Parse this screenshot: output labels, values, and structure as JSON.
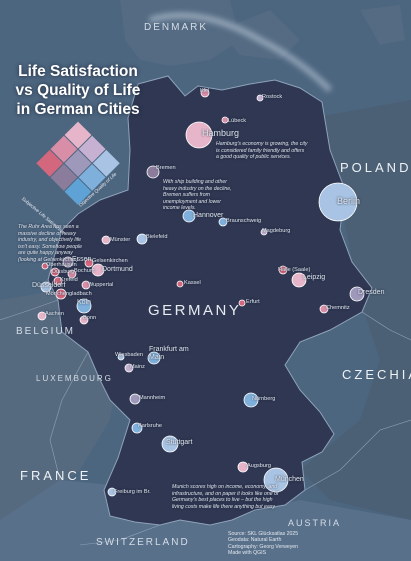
{
  "title": [
    "Life Satisfaction",
    "vs Quality of Life",
    "in German Cities"
  ],
  "legend": {
    "x_axis": "Objective Quality of Life",
    "y_axis": "Subjective Life Satisfaction",
    "colors": [
      "#e6b5c9",
      "#c7b1d2",
      "#a8c3e3",
      "#d98ea8",
      "#9e98bb",
      "#7fb0dc",
      "#d2677e",
      "#8b7c9c",
      "#5fa3d6"
    ]
  },
  "countries": {
    "germany": "GERMANY",
    "poland": "POLAND",
    "czechia": "CZECHIA",
    "belgium": "BELGIUM",
    "luxembourg": "LUXEMBOURG",
    "france": "FRANCE",
    "switzerland": "SWITZERLAND",
    "austria": "AUSTRIA",
    "denmark": "DENMARK"
  },
  "cities": [
    {
      "name": "Hamburg",
      "color": "#e6b5c9"
    },
    {
      "name": "Berlin",
      "color": "#a8c3e3"
    },
    {
      "name": "Bremen",
      "color": "#8b7c9c"
    },
    {
      "name": "Kiel",
      "color": "#d98ea8"
    },
    {
      "name": "Rostock",
      "color": "#c7b1d2"
    },
    {
      "name": "Lübeck",
      "color": "#d98ea8"
    },
    {
      "name": "Hannover",
      "color": "#7fb0dc"
    },
    {
      "name": "Braunschweig",
      "color": "#7fb0dc"
    },
    {
      "name": "Magdeburg",
      "color": "#c7b1d2"
    },
    {
      "name": "Bielefeld",
      "color": "#a8c3e3"
    },
    {
      "name": "Münster",
      "color": "#e6b5c9"
    },
    {
      "name": "Halle (Saale)",
      "color": "#d2677e"
    },
    {
      "name": "Leipzig",
      "color": "#e6b5c9"
    },
    {
      "name": "Dresden",
      "color": "#9e98bb"
    },
    {
      "name": "Chemnitz",
      "color": "#d98ea8"
    },
    {
      "name": "Erfurt",
      "color": "#d2677e"
    },
    {
      "name": "Kassel",
      "color": "#d2677e"
    },
    {
      "name": "Essen",
      "color": "#8b7c9c"
    },
    {
      "name": "Dortmund",
      "color": "#e6b5c9"
    },
    {
      "name": "Gelsenkirchen",
      "color": "#d2677e"
    },
    {
      "name": "Duisburg",
      "color": "#d2677e"
    },
    {
      "name": "Bochum",
      "color": "#d98ea8"
    },
    {
      "name": "Oberhausen",
      "color": "#d2677e"
    },
    {
      "name": "Krefeld",
      "color": "#d2677e"
    },
    {
      "name": "Wuppertal",
      "color": "#d98ea8"
    },
    {
      "name": "Düsseldorf",
      "color": "#a8c3e3"
    },
    {
      "name": "Mönchengladbach",
      "color": "#d2677e"
    },
    {
      "name": "Köln",
      "color": "#7fb0dc"
    },
    {
      "name": "Bonn",
      "color": "#e6b5c9"
    },
    {
      "name": "Aachen",
      "color": "#e6b5c9"
    },
    {
      "name": "Frankfurt am Main",
      "color": "#7fb0dc"
    },
    {
      "name": "Wiesbaden",
      "color": "#a8c3e3"
    },
    {
      "name": "Mainz",
      "color": "#c7b1d2"
    },
    {
      "name": "Mannheim",
      "color": "#9e98bb"
    },
    {
      "name": "Karlsruhe",
      "color": "#7fb0dc"
    },
    {
      "name": "Stuttgart",
      "color": "#a8c3e3"
    },
    {
      "name": "Nürnberg",
      "color": "#7fb0dc"
    },
    {
      "name": "Augsburg",
      "color": "#e6b5c9"
    },
    {
      "name": "München",
      "color": "#a8c3e3"
    },
    {
      "name": "Freiburg im Br.",
      "color": "#a8c3e3"
    }
  ],
  "notes": {
    "hamburg": "Hamburg's economy is growing, the city is considered family friendly and offers a good quality of public services.",
    "bremen": "With ship building and other heavy industry on the decline, Bremen suffers from unemployment and lower income levels.",
    "ruhr": "The Ruhr Area has seen a massive decline of heavy industry, and objectively life isn't easy. Somehow people are quite happy anyway (looking at Gelsenkirchen).",
    "munich": "Munich scores high on income, economy, and infrastructure, and on paper it looks like one of Germany's best places to live – but the high living costs make life there anything but easy."
  },
  "source": [
    "Source: SKL Glücksatlas 2025",
    "Geodata: Natural Earth",
    "Cartography: Georg Verweyen",
    "Made with QGIS"
  ]
}
